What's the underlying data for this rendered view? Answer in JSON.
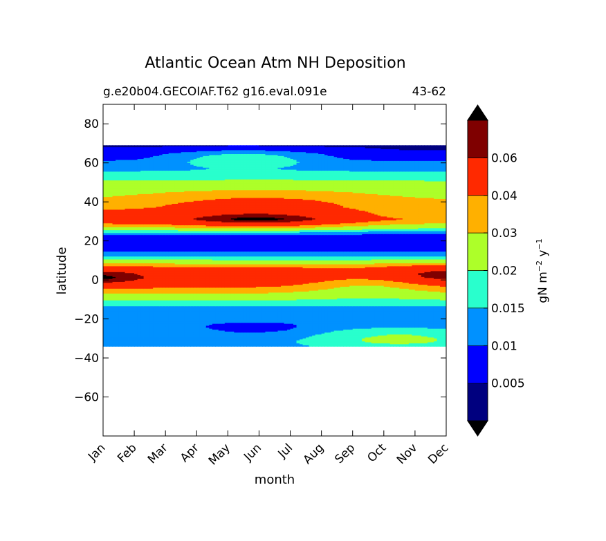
{
  "chart_data": {
    "type": "heatmap",
    "title": "Atlantic Ocean Atm NH Deposition",
    "subtitle_left": "g.e20b04.GECOIAF.T62 g16.eval.091e",
    "subtitle_right": "43-62",
    "xlabel": "month",
    "ylabel": "latitude",
    "x_categories": [
      "Jan",
      "Feb",
      "Mar",
      "Apr",
      "May",
      "Jun",
      "Jul",
      "Aug",
      "Sep",
      "Oct",
      "Nov",
      "Dec"
    ],
    "ylim": [
      -80,
      90
    ],
    "y_ticks": [
      80,
      60,
      40,
      20,
      0,
      -20,
      -40,
      -60
    ],
    "y_tick_labels": [
      "80",
      "60",
      "40",
      "20",
      "0",
      "−20",
      "−40",
      "−60"
    ],
    "data_lat_range": [
      -34,
      69
    ],
    "colorbar": {
      "label_base": "gN m",
      "label_exp1": "−2",
      "label_mid": " y",
      "label_exp2": "−1",
      "levels": [
        0,
        0.005,
        0.01,
        0.015,
        0.02,
        0.03,
        0.04,
        0.06,
        0.07
      ],
      "tick_labels": [
        "0.005",
        "0.01",
        "0.015",
        "0.02",
        "0.03",
        "0.04",
        "0.06"
      ],
      "colors": [
        "#00007f",
        "#0000ff",
        "#0091ff",
        "#29ffcd",
        "#adff29",
        "#ffb000",
        "#ff2900",
        "#7f0000"
      ],
      "extend_min_color": "#000000",
      "extend_max_color": "#000000"
    },
    "profile": {
      "latitudes": [
        69,
        67,
        65,
        62,
        60,
        57,
        55,
        52,
        50,
        47,
        45,
        42,
        40,
        37,
        35,
        33,
        31,
        29,
        27,
        25,
        23,
        20,
        17,
        15,
        13,
        11,
        9,
        7,
        5,
        3,
        1,
        0,
        -2,
        -4,
        -6,
        -8,
        -10,
        -12,
        -15,
        -18,
        -20,
        -23,
        -26,
        -29,
        -32,
        -34
      ],
      "values": [
        0.004,
        0.006,
        0.008,
        0.009,
        0.011,
        0.013,
        0.016,
        0.018,
        0.021,
        0.023,
        0.026,
        0.029,
        0.032,
        0.036,
        0.041,
        0.045,
        0.05,
        0.041,
        0.03,
        0.018,
        0.01,
        0.008,
        0.007,
        0.009,
        0.013,
        0.017,
        0.025,
        0.038,
        0.045,
        0.05,
        0.052,
        0.05,
        0.046,
        0.04,
        0.033,
        0.027,
        0.021,
        0.017,
        0.013,
        0.012,
        0.011,
        0.011,
        0.012,
        0.012,
        0.013,
        0.013
      ]
    }
  }
}
